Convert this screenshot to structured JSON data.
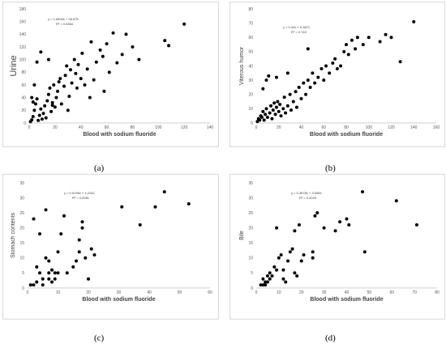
{
  "panels": [
    {
      "caption": "(a)"
    },
    {
      "caption": "(b)"
    },
    {
      "caption": "(c)"
    },
    {
      "caption": "(d)"
    }
  ],
  "chart_data": [
    {
      "type": "scatter",
      "xlabel": "Blood with sodium fluoride",
      "ylabel": "Urine",
      "xlim": [
        0,
        140
      ],
      "ylim": [
        0,
        180
      ],
      "xticks": [
        0,
        20,
        40,
        60,
        80,
        100,
        120,
        140
      ],
      "yticks": [
        0,
        20,
        40,
        60,
        80,
        100,
        120,
        140,
        160,
        180
      ],
      "equation": "y = 1.0826x + 28.675",
      "r2": "R² = 0.5364",
      "points": [
        [
          1,
          2
        ],
        [
          2,
          5
        ],
        [
          3,
          10
        ],
        [
          4,
          20
        ],
        [
          5,
          30
        ],
        [
          6,
          38
        ],
        [
          7,
          4
        ],
        [
          8,
          12
        ],
        [
          9,
          22
        ],
        [
          10,
          6
        ],
        [
          11,
          15
        ],
        [
          12,
          27
        ],
        [
          13,
          8
        ],
        [
          14,
          35
        ],
        [
          15,
          45
        ],
        [
          16,
          55
        ],
        [
          17,
          18
        ],
        [
          18,
          28
        ],
        [
          19,
          60
        ],
        [
          20,
          25
        ],
        [
          21,
          40
        ],
        [
          22,
          50
        ],
        [
          23,
          65
        ],
        [
          24,
          70
        ],
        [
          25,
          30
        ],
        [
          27,
          58
        ],
        [
          28,
          75
        ],
        [
          29,
          90
        ],
        [
          30,
          20
        ],
        [
          31,
          42
        ],
        [
          32,
          84
        ],
        [
          33,
          63
        ],
        [
          35,
          100
        ],
        [
          36,
          78
        ],
        [
          37,
          55
        ],
        [
          38,
          92
        ],
        [
          40,
          70
        ],
        [
          41,
          110
        ],
        [
          43,
          60
        ],
        [
          45,
          85
        ],
        [
          47,
          40
        ],
        [
          48,
          128
        ],
        [
          50,
          68
        ],
        [
          52,
          96
        ],
        [
          55,
          115
        ],
        [
          57,
          105
        ],
        [
          58,
          50
        ],
        [
          60,
          125
        ],
        [
          62,
          80
        ],
        [
          65,
          142
        ],
        [
          68,
          95
        ],
        [
          72,
          108
        ],
        [
          75,
          140
        ],
        [
          80,
          120
        ],
        [
          85,
          100
        ],
        [
          105,
          130
        ],
        [
          108,
          122
        ],
        [
          120,
          156
        ],
        [
          3,
          33
        ],
        [
          2,
          40
        ],
        [
          4,
          60
        ],
        [
          6,
          96
        ],
        [
          9,
          112
        ],
        [
          15,
          100
        ],
        [
          18,
          32
        ]
      ]
    },
    {
      "type": "scatter",
      "xlabel": "Blood with sodium fluoride",
      "ylabel": "Viterous humor",
      "xlim": [
        0,
        160
      ],
      "ylim": [
        0,
        80
      ],
      "xticks": [
        0,
        20,
        40,
        60,
        80,
        100,
        120,
        140,
        160
      ],
      "yticks": [
        0,
        10,
        20,
        30,
        40,
        50,
        60,
        70,
        80
      ],
      "equation": "y = 0.44x + 6.3871",
      "r2": "R² = 0.749",
      "points": [
        [
          1,
          1
        ],
        [
          2,
          3
        ],
        [
          3,
          2
        ],
        [
          4,
          5
        ],
        [
          5,
          4
        ],
        [
          6,
          8
        ],
        [
          7,
          2
        ],
        [
          8,
          6
        ],
        [
          9,
          10
        ],
        [
          10,
          4
        ],
        [
          12,
          7
        ],
        [
          13,
          12
        ],
        [
          14,
          3
        ],
        [
          15,
          9
        ],
        [
          16,
          14
        ],
        [
          17,
          6
        ],
        [
          18,
          11
        ],
        [
          19,
          15
        ],
        [
          20,
          8
        ],
        [
          21,
          13
        ],
        [
          22,
          5
        ],
        [
          24,
          10
        ],
        [
          25,
          18
        ],
        [
          26,
          7
        ],
        [
          28,
          12
        ],
        [
          30,
          20
        ],
        [
          31,
          9
        ],
        [
          33,
          15
        ],
        [
          35,
          22
        ],
        [
          36,
          11
        ],
        [
          38,
          25
        ],
        [
          40,
          17
        ],
        [
          42,
          28
        ],
        [
          44,
          20
        ],
        [
          46,
          30
        ],
        [
          48,
          25
        ],
        [
          50,
          35
        ],
        [
          52,
          28
        ],
        [
          55,
          32
        ],
        [
          58,
          38
        ],
        [
          60,
          30
        ],
        [
          62,
          40
        ],
        [
          65,
          35
        ],
        [
          68,
          42
        ],
        [
          70,
          45
        ],
        [
          72,
          38
        ],
        [
          75,
          40
        ],
        [
          78,
          50
        ],
        [
          80,
          55
        ],
        [
          82,
          48
        ],
        [
          85,
          58
        ],
        [
          88,
          52
        ],
        [
          90,
          60
        ],
        [
          95,
          55
        ],
        [
          100,
          60
        ],
        [
          110,
          57
        ],
        [
          115,
          62
        ],
        [
          120,
          60
        ],
        [
          128,
          43
        ],
        [
          140,
          71
        ],
        [
          6,
          24
        ],
        [
          9,
          30
        ],
        [
          11,
          33
        ],
        [
          18,
          32
        ],
        [
          28,
          35
        ],
        [
          46,
          52
        ]
      ]
    },
    {
      "type": "scatter",
      "xlabel": "Blood with sodium fluoride",
      "ylabel": "Stomach contents",
      "xlim": [
        0,
        60
      ],
      "ylim": [
        0,
        35
      ],
      "xticks": [
        0,
        10,
        20,
        30,
        40,
        50,
        60
      ],
      "yticks": [
        0,
        5,
        10,
        15,
        20,
        25,
        30,
        35
      ],
      "equation": "y = 0.5196x + 4.2152",
      "r2": "R² = 0.4981",
      "points": [
        [
          1,
          1
        ],
        [
          2,
          1
        ],
        [
          2,
          23
        ],
        [
          3,
          7
        ],
        [
          3,
          2
        ],
        [
          4,
          18
        ],
        [
          4,
          5
        ],
        [
          5,
          3
        ],
        [
          5,
          1
        ],
        [
          6,
          10
        ],
        [
          6,
          26
        ],
        [
          7,
          9
        ],
        [
          7,
          5
        ],
        [
          7,
          3
        ],
        [
          8,
          6
        ],
        [
          8,
          2
        ],
        [
          9,
          5
        ],
        [
          9,
          3
        ],
        [
          10,
          5
        ],
        [
          10,
          12
        ],
        [
          11,
          18
        ],
        [
          12,
          24
        ],
        [
          13,
          5
        ],
        [
          15,
          7
        ],
        [
          16,
          9
        ],
        [
          17,
          12
        ],
        [
          17,
          16
        ],
        [
          18,
          20
        ],
        [
          18,
          22
        ],
        [
          19,
          10
        ],
        [
          20,
          3
        ],
        [
          21,
          13
        ],
        [
          22,
          11
        ],
        [
          31,
          27
        ],
        [
          37,
          21
        ],
        [
          42,
          27
        ],
        [
          45,
          32
        ],
        [
          53,
          28
        ]
      ]
    },
    {
      "type": "scatter",
      "xlabel": "Blood with sodium fluoride",
      "ylabel": "Bile",
      "xlim": [
        0,
        80
      ],
      "ylim": [
        0,
        35
      ],
      "xticks": [
        0,
        10,
        20,
        30,
        40,
        50,
        60,
        70,
        80
      ],
      "yticks": [
        0,
        5,
        10,
        15,
        20,
        25,
        30,
        35
      ],
      "equation": "y = 0.3578x + 3.5484",
      "r2": "R² = 0.4023",
      "points": [
        [
          2,
          1
        ],
        [
          3,
          1
        ],
        [
          3,
          3
        ],
        [
          4,
          2
        ],
        [
          4,
          1
        ],
        [
          5,
          2
        ],
        [
          5,
          4
        ],
        [
          6,
          3
        ],
        [
          6,
          5
        ],
        [
          7,
          4
        ],
        [
          8,
          7
        ],
        [
          9,
          20
        ],
        [
          9,
          6
        ],
        [
          10,
          10
        ],
        [
          11,
          11
        ],
        [
          12,
          6
        ],
        [
          12,
          3
        ],
        [
          13,
          2
        ],
        [
          15,
          12
        ],
        [
          16,
          13
        ],
        [
          17,
          5
        ],
        [
          17,
          19
        ],
        [
          18,
          4
        ],
        [
          19,
          21
        ],
        [
          20,
          9
        ],
        [
          21,
          11
        ],
        [
          25,
          10
        ],
        [
          26,
          24
        ],
        [
          27,
          25
        ],
        [
          30,
          20
        ],
        [
          35,
          19
        ],
        [
          37,
          22
        ],
        [
          40,
          23
        ],
        [
          41,
          21
        ],
        [
          47,
          32
        ],
        [
          48,
          12
        ],
        [
          62,
          29
        ],
        [
          71,
          21
        ],
        [
          25,
          12
        ],
        [
          14,
          9
        ]
      ]
    }
  ]
}
